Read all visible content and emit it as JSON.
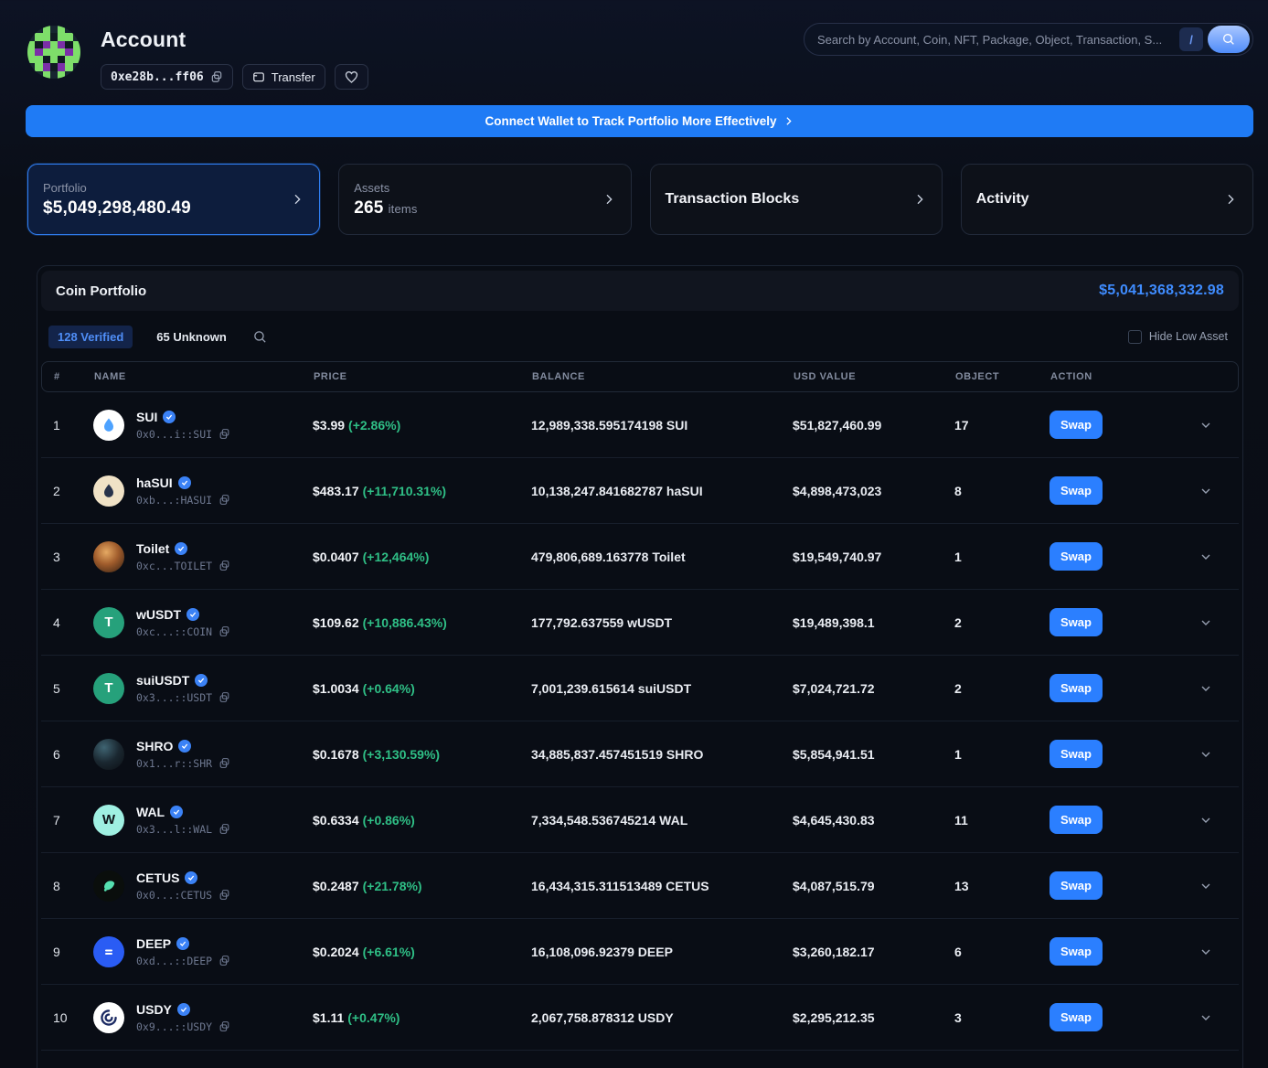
{
  "header": {
    "title": "Account",
    "address_short": "0xe28b...ff06",
    "transfer_label": "Transfer",
    "search": {
      "placeholder": "Search by Account, Coin, NFT, Package, Object, Transaction, S...",
      "shortcut_key": "/"
    }
  },
  "banner": {
    "label": "Connect Wallet to Track Portfolio More Effectively"
  },
  "cards": {
    "portfolio": {
      "label": "Portfolio",
      "value": "$5,049,298,480.49"
    },
    "assets": {
      "label": "Assets",
      "value": "265",
      "suffix": "items"
    },
    "transaction_blocks": {
      "label": "Transaction Blocks"
    },
    "activity": {
      "label": "Activity"
    }
  },
  "portfolio_section": {
    "title": "Coin Portfolio",
    "total": "$5,041,368,332.98",
    "tabs": [
      {
        "label": "128 Verified",
        "active": true
      },
      {
        "label": "65 Unknown",
        "active": false
      }
    ],
    "hide_low_asset_label": "Hide Low Asset",
    "table": {
      "columns": [
        "#",
        "NAME",
        "PRICE",
        "BALANCE",
        "USD VALUE",
        "OBJECT",
        "ACTION"
      ],
      "swap_label": "Swap",
      "rows": [
        {
          "rank": "1",
          "name": "SUI",
          "verified": true,
          "address": "0x0...i::SUI",
          "price": "$3.99",
          "change": "(+2.86%)",
          "balance": "12,989,338.595174198 SUI",
          "usd": "$51,827,460.99",
          "objects": "17",
          "icon": {
            "kind": "drop",
            "bg": "#ffffff",
            "fg": "#4da2ff"
          }
        },
        {
          "rank": "2",
          "name": "haSUI",
          "verified": true,
          "address": "0xb...:HASUI",
          "price": "$483.17",
          "change": "(+11,710.31%)",
          "balance": "10,138,247.841682787 haSUI",
          "usd": "$4,898,473,023",
          "objects": "8",
          "icon": {
            "kind": "drop",
            "bg": "#f0e2c6",
            "fg": "#27324a"
          }
        },
        {
          "rank": "3",
          "name": "Toilet",
          "verified": true,
          "address": "0xc...TOILET",
          "price": "$0.0407",
          "change": "(+12,464%)",
          "balance": "479,806,689.163778 Toilet",
          "usd": "$19,549,740.97",
          "objects": "1",
          "icon": {
            "kind": "toilet",
            "bg": "",
            "fg": ""
          }
        },
        {
          "rank": "4",
          "name": "wUSDT",
          "verified": true,
          "address": "0xc...::COIN",
          "price": "$109.62",
          "change": "(+10,886.43%)",
          "balance": "177,792.637559 wUSDT",
          "usd": "$19,489,398.1",
          "objects": "2",
          "icon": {
            "kind": "letter",
            "bg": "#26a17b",
            "fg": "#ffffff",
            "glyph": "T"
          }
        },
        {
          "rank": "5",
          "name": "suiUSDT",
          "verified": true,
          "address": "0x3...::USDT",
          "price": "$1.0034",
          "change": "(+0.64%)",
          "balance": "7,001,239.615614 suiUSDT",
          "usd": "$7,024,721.72",
          "objects": "2",
          "icon": {
            "kind": "letter",
            "bg": "#26a17b",
            "fg": "#ffffff",
            "glyph": "T"
          }
        },
        {
          "rank": "6",
          "name": "SHRO",
          "verified": true,
          "address": "0x1...r::SHR",
          "price": "$0.1678",
          "change": "(+3,130.59%)",
          "balance": "34,885,837.457451519 SHRO",
          "usd": "$5,854,941.51",
          "objects": "1",
          "icon": {
            "kind": "shro",
            "bg": "",
            "fg": ""
          }
        },
        {
          "rank": "7",
          "name": "WAL",
          "verified": true,
          "address": "0x3...l::WAL",
          "price": "$0.6334",
          "change": "(+0.86%)",
          "balance": "7,334,548.536745214 WAL",
          "usd": "$4,645,430.83",
          "objects": "11",
          "icon": {
            "kind": "letter",
            "bg": "#9ff0e2",
            "fg": "#0c1116",
            "glyph": "W"
          }
        },
        {
          "rank": "8",
          "name": "CETUS",
          "verified": true,
          "address": "0x0...:CETUS",
          "price": "$0.2487",
          "change": "(+21.78%)",
          "balance": "16,434,315.311513489 CETUS",
          "usd": "$4,087,515.79",
          "objects": "13",
          "icon": {
            "kind": "whale",
            "bg": "#0a0e0c",
            "fg": "#55e0b0"
          }
        },
        {
          "rank": "9",
          "name": "DEEP",
          "verified": true,
          "address": "0xd...::DEEP",
          "price": "$0.2024",
          "change": "(+6.61%)",
          "balance": "16,108,096.92379 DEEP",
          "usd": "$3,260,182.17",
          "objects": "6",
          "icon": {
            "kind": "equals",
            "bg": "#2a5cf4",
            "fg": "#ffffff"
          }
        },
        {
          "rank": "10",
          "name": "USDY",
          "verified": true,
          "address": "0x9...::USDY",
          "price": "$1.11",
          "change": "(+0.47%)",
          "balance": "2,067,758.878312 USDY",
          "usd": "$2,295,212.35",
          "objects": "3",
          "icon": {
            "kind": "swirl",
            "bg": "#ffffff",
            "fg": "#1b2a63"
          }
        }
      ]
    }
  },
  "colors": {
    "accent_blue": "#2b7fff",
    "banner_blue": "#1f7bf5",
    "positive_green": "#2fbf86",
    "total_blue": "#3f8cff",
    "verified_badge": "#3b82f6"
  },
  "avatar_pixels": {
    "palette": {
      "g": "#7ede6a",
      "p": "#7b2fa8",
      "d": "#172530",
      "k": "#101a22"
    },
    "grid": "kdgdgdk,dggkggd,gkpgpkg,gpgggpg,ggkgkgg,dgpkpgd,kdgdgdk"
  }
}
